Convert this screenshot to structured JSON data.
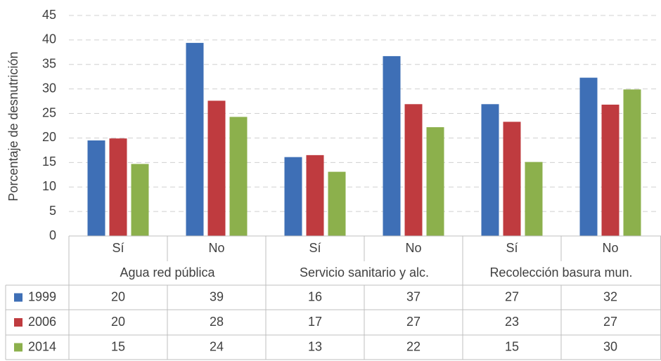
{
  "chart_data": {
    "type": "bar",
    "y_label": "Porcentaje de desnutrición",
    "categories": [
      "Sí",
      "No",
      "Sí",
      "No",
      "Sí",
      "No"
    ],
    "category_groups": [
      "Agua red pública",
      "Servicio sanitario y alc.",
      "Recolección basura mun."
    ],
    "series": [
      {
        "name": "1999",
        "color": "#3e6fb6",
        "values": [
          19.5,
          39.4,
          16.1,
          36.7,
          26.9,
          32.3
        ],
        "value_labels": [
          "20",
          "39",
          "16",
          "37",
          "27",
          "32"
        ]
      },
      {
        "name": "2006",
        "color": "#bf3b3f",
        "values": [
          19.9,
          27.6,
          16.5,
          26.9,
          23.3,
          26.8
        ],
        "value_labels": [
          "20",
          "28",
          "17",
          "27",
          "23",
          "27"
        ]
      },
      {
        "name": "2014",
        "color": "#8cb04c",
        "values": [
          14.7,
          24.3,
          13.1,
          22.2,
          15.1,
          29.9
        ],
        "value_labels": [
          "15",
          "24",
          "13",
          "22",
          "15",
          "30"
        ]
      }
    ],
    "ylim": [
      0,
      45
    ],
    "yticks": [
      0,
      5,
      10,
      15,
      20,
      25,
      30,
      35,
      40,
      45
    ],
    "grid": true
  }
}
